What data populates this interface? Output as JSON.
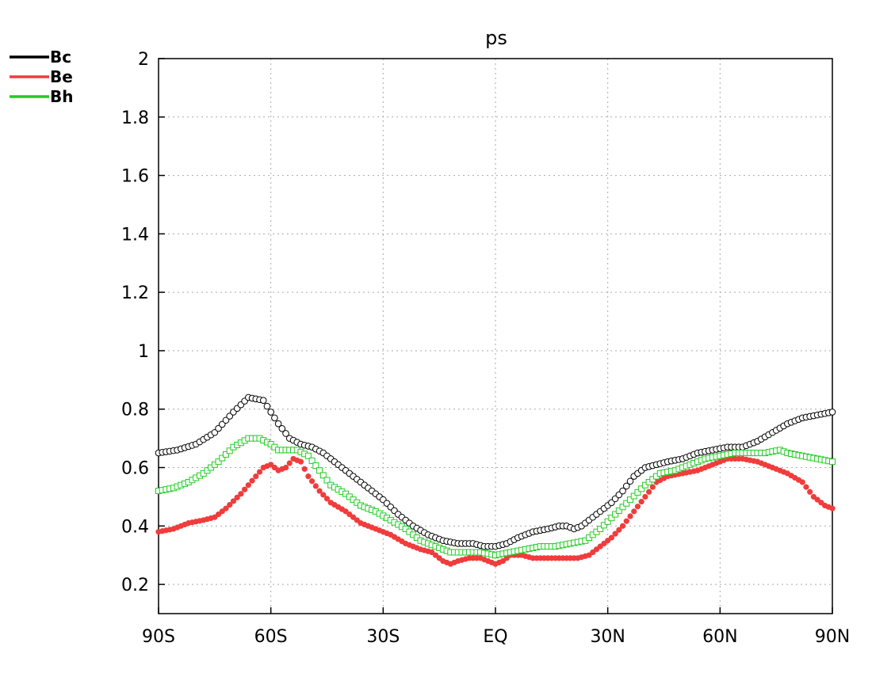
{
  "chart_data": {
    "type": "scatter",
    "title": "ps",
    "xlabel": "",
    "ylabel": "",
    "xlim": [
      -90,
      90
    ],
    "ylim": [
      0.1,
      2.0
    ],
    "x_ticks": [
      {
        "value": -90,
        "label": "90S"
      },
      {
        "value": -60,
        "label": "60S"
      },
      {
        "value": -30,
        "label": "30S"
      },
      {
        "value": 0,
        "label": "EQ"
      },
      {
        "value": 30,
        "label": "30N"
      },
      {
        "value": 60,
        "label": "60N"
      },
      {
        "value": 90,
        "label": "90N"
      }
    ],
    "y_ticks": [
      {
        "value": 0.2,
        "label": "0.2"
      },
      {
        "value": 0.4,
        "label": "0.4"
      },
      {
        "value": 0.6,
        "label": "0.6"
      },
      {
        "value": 0.8,
        "label": "0.8"
      },
      {
        "value": 1.0,
        "label": "1"
      },
      {
        "value": 1.2,
        "label": "1.2"
      },
      {
        "value": 1.4,
        "label": "1.4"
      },
      {
        "value": 1.6,
        "label": "1.6"
      },
      {
        "value": 1.8,
        "label": "1.8"
      },
      {
        "value": 2.0,
        "label": "2"
      }
    ],
    "grid": true,
    "legend_position": "top-left",
    "series": [
      {
        "name": "Bc",
        "color": "#000000",
        "marker": "open-circle",
        "x": [
          -90,
          -85,
          -80,
          -75,
          -70,
          -66,
          -62,
          -58,
          -55,
          -52,
          -49,
          -46,
          -42,
          -38,
          -34,
          -30,
          -26,
          -22,
          -18,
          -14,
          -10,
          -6,
          -3,
          0,
          3,
          6,
          10,
          14,
          17,
          19,
          21,
          23,
          25,
          28,
          31,
          34,
          37,
          40,
          43,
          46,
          50,
          54,
          58,
          62,
          66,
          70,
          74,
          78,
          82,
          86,
          90
        ],
        "y": [
          0.65,
          0.66,
          0.68,
          0.72,
          0.79,
          0.84,
          0.83,
          0.75,
          0.7,
          0.68,
          0.67,
          0.65,
          0.61,
          0.57,
          0.53,
          0.49,
          0.44,
          0.4,
          0.37,
          0.35,
          0.34,
          0.34,
          0.33,
          0.33,
          0.34,
          0.36,
          0.38,
          0.39,
          0.4,
          0.4,
          0.39,
          0.4,
          0.42,
          0.45,
          0.48,
          0.52,
          0.57,
          0.6,
          0.61,
          0.62,
          0.63,
          0.65,
          0.66,
          0.67,
          0.67,
          0.69,
          0.72,
          0.75,
          0.77,
          0.78,
          0.79
        ]
      },
      {
        "name": "Be",
        "color": "#f03c3c",
        "marker": "filled-circle",
        "x": [
          -90,
          -86,
          -82,
          -78,
          -75,
          -72,
          -68,
          -64,
          -62,
          -60,
          -58,
          -56,
          -54,
          -52,
          -50,
          -47,
          -44,
          -40,
          -36,
          -32,
          -28,
          -24,
          -20,
          -17,
          -14,
          -12,
          -10,
          -7,
          -4,
          -2,
          0,
          2,
          4,
          7,
          10,
          14,
          18,
          22,
          25,
          28,
          31,
          34,
          37,
          40,
          43,
          46,
          50,
          54,
          58,
          62,
          66,
          70,
          74,
          78,
          82,
          85,
          88,
          90
        ],
        "y": [
          0.38,
          0.39,
          0.41,
          0.42,
          0.43,
          0.46,
          0.51,
          0.57,
          0.6,
          0.61,
          0.59,
          0.6,
          0.63,
          0.62,
          0.57,
          0.52,
          0.48,
          0.45,
          0.41,
          0.39,
          0.37,
          0.34,
          0.32,
          0.31,
          0.28,
          0.27,
          0.28,
          0.29,
          0.29,
          0.28,
          0.27,
          0.28,
          0.3,
          0.3,
          0.29,
          0.29,
          0.29,
          0.29,
          0.3,
          0.33,
          0.36,
          0.4,
          0.45,
          0.5,
          0.55,
          0.57,
          0.58,
          0.59,
          0.61,
          0.63,
          0.63,
          0.62,
          0.6,
          0.58,
          0.55,
          0.5,
          0.47,
          0.46
        ]
      },
      {
        "name": "Bh",
        "color": "#22cc22",
        "marker": "open-square",
        "x": [
          -90,
          -86,
          -82,
          -78,
          -74,
          -70,
          -66,
          -63,
          -60,
          -58,
          -56,
          -53,
          -50,
          -47,
          -44,
          -40,
          -36,
          -32,
          -28,
          -24,
          -20,
          -16,
          -12,
          -8,
          -4,
          0,
          4,
          8,
          12,
          16,
          20,
          24,
          28,
          32,
          36,
          40,
          44,
          48,
          52,
          56,
          60,
          64,
          68,
          72,
          76,
          78,
          82,
          86,
          90
        ],
        "y": [
          0.52,
          0.53,
          0.55,
          0.58,
          0.62,
          0.67,
          0.7,
          0.7,
          0.68,
          0.66,
          0.66,
          0.66,
          0.64,
          0.59,
          0.54,
          0.51,
          0.47,
          0.45,
          0.42,
          0.39,
          0.35,
          0.33,
          0.31,
          0.31,
          0.31,
          0.3,
          0.31,
          0.32,
          0.33,
          0.33,
          0.34,
          0.35,
          0.39,
          0.44,
          0.49,
          0.54,
          0.58,
          0.59,
          0.61,
          0.63,
          0.64,
          0.65,
          0.65,
          0.65,
          0.66,
          0.65,
          0.64,
          0.63,
          0.62
        ]
      }
    ]
  }
}
